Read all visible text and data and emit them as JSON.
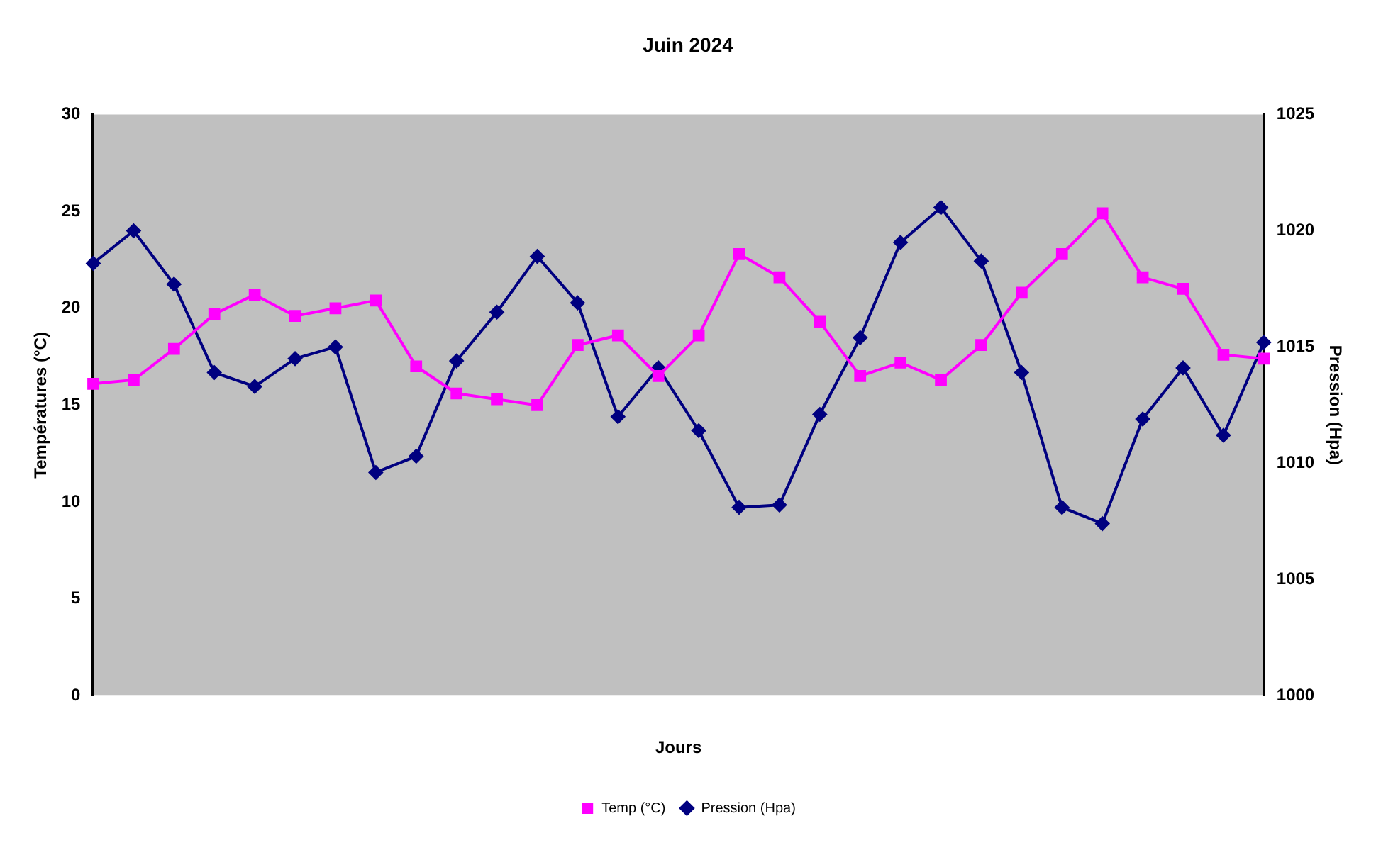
{
  "chart_data": {
    "type": "line",
    "title": "Juin 2024",
    "xlabel": "Jours",
    "ylabel": "Températures (°C)",
    "y2label": "Pression (Hpa)",
    "categories": [
      null,
      null,
      null,
      null,
      null,
      null,
      null,
      null,
      null,
      null,
      null,
      null,
      null,
      null,
      null,
      null,
      null,
      null,
      null,
      null,
      null,
      null,
      null,
      null,
      null,
      null,
      null,
      null,
      null,
      null
    ],
    "series": [
      {
        "name": "Temp (°C)",
        "color": "#ff00ff",
        "marker": "square",
        "values": [
          16.1,
          16.3,
          17.9,
          19.7,
          20.7,
          19.6,
          20.0,
          20.4,
          17.0,
          15.6,
          15.3,
          15.0,
          18.1,
          18.6,
          16.5,
          18.6,
          22.8,
          21.6,
          19.3,
          16.5,
          17.2,
          16.3,
          18.1,
          20.8,
          22.8,
          24.9,
          21.6,
          21.0,
          17.6,
          17.4
        ]
      },
      {
        "name": "Pression (Hpa)",
        "color": "#000080",
        "marker": "diamond",
        "axis": "y2",
        "values": [
          1018.6,
          1020.0,
          1017.7,
          1013.9,
          1013.3,
          1014.5,
          1015.0,
          1009.6,
          1010.3,
          1014.4,
          1016.5,
          1018.9,
          1016.9,
          1012.0,
          1014.1,
          1011.4,
          1008.1,
          1008.2,
          1012.1,
          1015.4,
          1019.5,
          1021.0,
          1018.7,
          1013.9,
          1008.1,
          1007.4,
          1011.9,
          1014.1,
          1011.2,
          1015.2
        ]
      }
    ],
    "ylim": [
      0,
      30
    ],
    "yticks": [
      0,
      5,
      10,
      15,
      20,
      25,
      30
    ],
    "y2lim": [
      1000,
      1025
    ],
    "y2ticks": [
      1000,
      1005,
      1010,
      1015,
      1020,
      1025
    ],
    "grid": false,
    "legend": "bottom"
  }
}
